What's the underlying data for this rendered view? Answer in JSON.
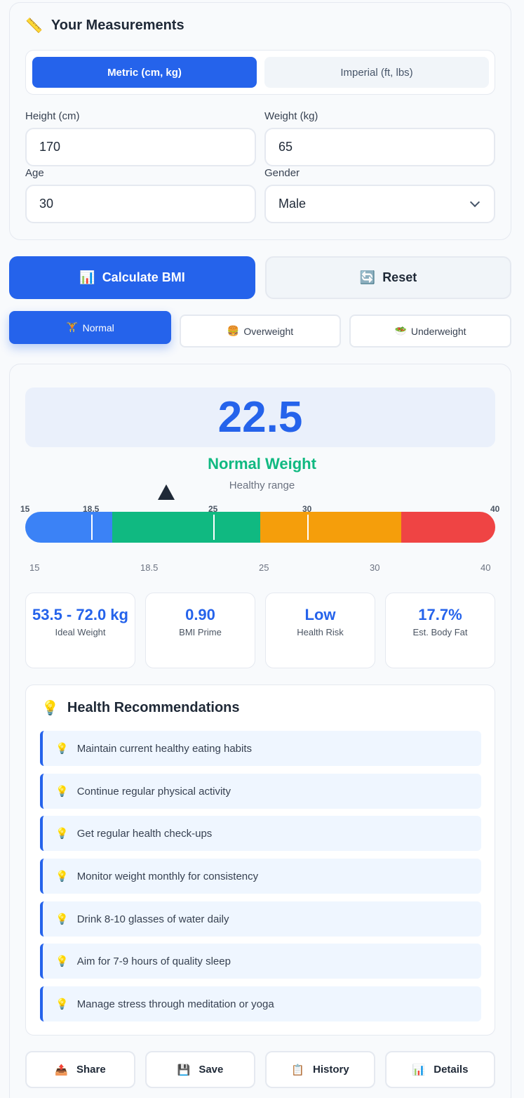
{
  "measurements": {
    "icon": "ruler-icon",
    "title": "Your Measurements",
    "unit_metric": "Metric (cm, kg)",
    "unit_imperial": "Imperial (ft, lbs)",
    "selected_unit": "metric",
    "height_label": "Height (cm)",
    "height_value": "170",
    "weight_label": "Weight (kg)",
    "weight_value": "65",
    "age_label": "Age",
    "age_value": "30",
    "gender_label": "Gender",
    "gender_value": "Male"
  },
  "actions": {
    "calculate_label": "Calculate BMI",
    "calculate_icon": "📊",
    "reset_label": "Reset",
    "reset_icon": "🔄"
  },
  "presets": {
    "selected": "Normal",
    "items": [
      {
        "icon": "🏋",
        "label": "Normal"
      },
      {
        "icon": "🍔",
        "label": "Overweight"
      },
      {
        "icon": "🥗",
        "label": "Underweight"
      }
    ]
  },
  "result": {
    "bmi": "22.5",
    "category": "Normal Weight",
    "category_color": "#10b981",
    "subtitle": "Healthy range",
    "accent_color": "#2563eb"
  },
  "scale": {
    "top_labels": [
      "15",
      "18.5",
      "25",
      "30",
      "40"
    ],
    "bottom_labels": [
      "15",
      "18.5",
      "25",
      "30",
      "40"
    ],
    "segments": [
      {
        "name": "underweight",
        "color": "#3b82f6"
      },
      {
        "name": "normal",
        "color": "#10b981"
      },
      {
        "name": "overweight",
        "color": "#f59e0b"
      },
      {
        "name": "obese",
        "color": "#ef4444"
      }
    ]
  },
  "stats": [
    {
      "value": "53.5 - 72.0 kg",
      "label": "Ideal Weight"
    },
    {
      "value": "0.90",
      "label": "BMI Prime"
    },
    {
      "value": "Low",
      "label": "Health Risk"
    },
    {
      "value": "17.7%",
      "label": "Est. Body Fat"
    }
  ],
  "recommendations": {
    "icon": "💡",
    "title": "Health Recommendations",
    "items": [
      "Maintain current healthy eating habits",
      "Continue regular physical activity",
      "Get regular health check-ups",
      "Monitor weight monthly for consistency",
      "Drink 8-10 glasses of water daily",
      "Aim for 7-9 hours of quality sleep",
      "Manage stress through meditation or yoga"
    ]
  },
  "footer_actions": [
    {
      "icon": "📤",
      "label": "Share"
    },
    {
      "icon": "💾",
      "label": "Save"
    },
    {
      "icon": "📋",
      "label": "History"
    },
    {
      "icon": "📊",
      "label": "Details"
    }
  ]
}
